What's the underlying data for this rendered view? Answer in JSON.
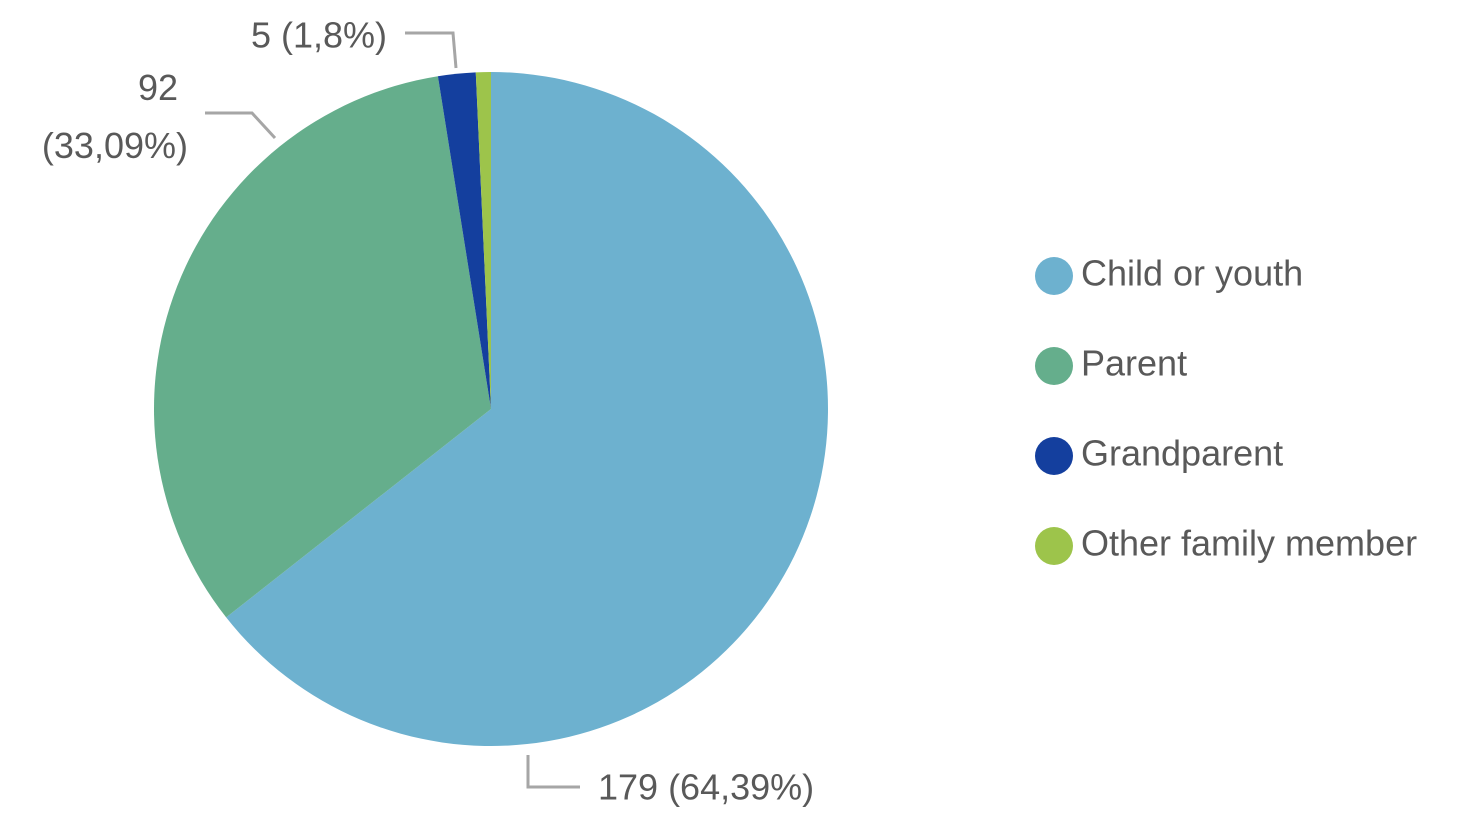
{
  "chart_data": {
    "type": "pie",
    "categories": [
      "Child or youth",
      "Parent",
      "Grandparent",
      "Other family member"
    ],
    "values": [
      179,
      92,
      5,
      2
    ],
    "value_labels": [
      "179 (64,39%)",
      "92 (33,09%)",
      "5 (1,8%)",
      null
    ],
    "colors": [
      "#6db1cf",
      "#65ae8c",
      "#143f9e",
      "#9dc44b"
    ],
    "legend": "right"
  }
}
